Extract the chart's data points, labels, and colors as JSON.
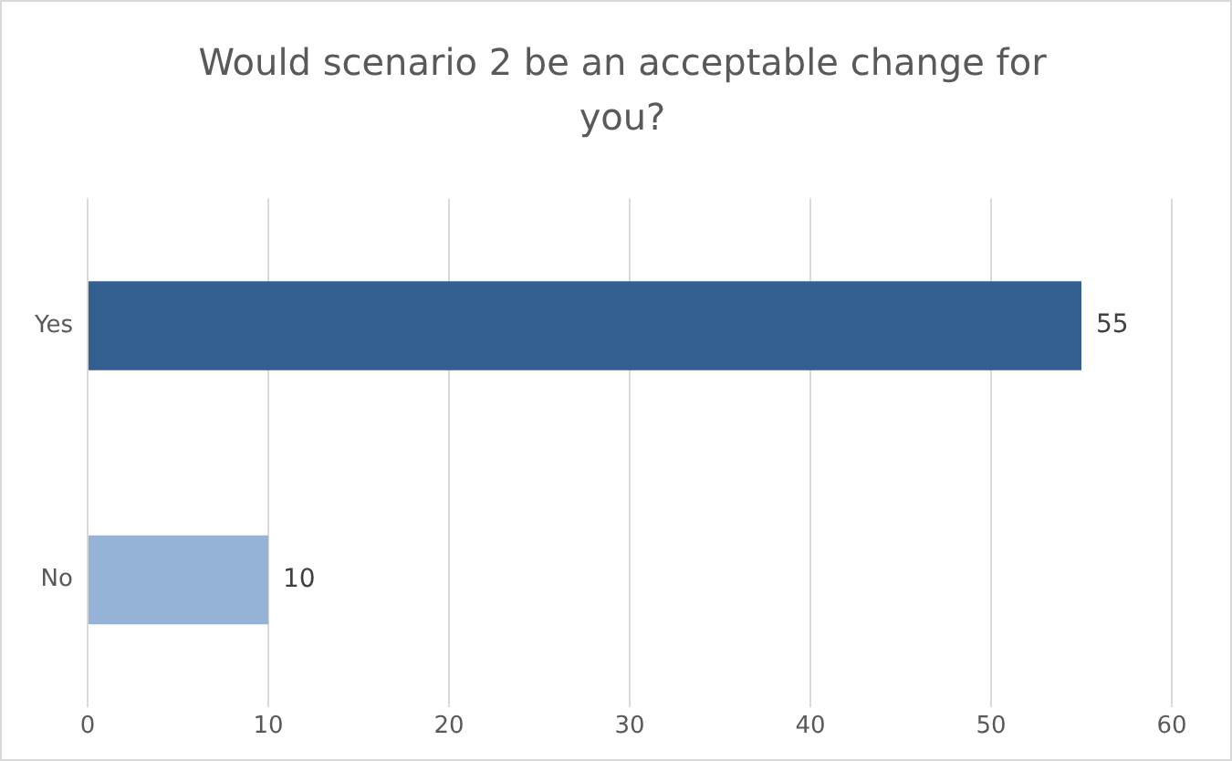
{
  "chart_data": {
    "type": "bar",
    "orientation": "horizontal",
    "title": "Would scenario 2 be an acceptable change for you?",
    "categories": [
      "Yes",
      "No"
    ],
    "values": [
      55,
      10
    ],
    "colors": [
      "#335f91",
      "#95b3d7"
    ],
    "xlim": [
      0,
      60
    ],
    "xticks": [
      0,
      10,
      20,
      30,
      40,
      50,
      60
    ],
    "grid": "x",
    "data_labels": true,
    "legend": false
  }
}
